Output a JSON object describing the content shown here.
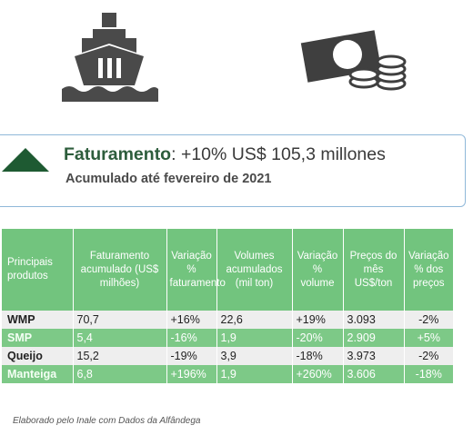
{
  "summary": {
    "label": "Faturamento",
    "value_text": ": +10% US$ 105,3 millones",
    "subtitle": "Acumulado até fevereiro de 2021",
    "trend": "up",
    "accent_color": "#1e5a32"
  },
  "icons": [
    "ship-icon",
    "money-icon"
  ],
  "table": {
    "headers": [
      "Principais produtos",
      "Faturamento acumulado (US$ milhões)",
      "Variação % faturamento",
      "Volumes acumulados (mil ton)",
      "Variação % volume",
      "Preços do mês US$/ton",
      "Variação % dos preços"
    ],
    "rows": [
      [
        "WMP",
        "70,7",
        "+16%",
        "22,6",
        "+19%",
        "3.093",
        "-2%"
      ],
      [
        "SMP",
        "5,4",
        "-16%",
        "1,9",
        "-20%",
        "2.909",
        "+5%"
      ],
      [
        "Queijo",
        "15,2",
        "-19%",
        "3,9",
        "-18%",
        "3.973",
        "-2%"
      ],
      [
        "Manteiga",
        "6,8",
        "+196%",
        "1,9",
        "+260%",
        "3.606",
        "-18%"
      ]
    ],
    "header_color": "#72c47e",
    "alt_row_color": "#7dc987"
  },
  "source": "Elaborado pelo Inale com Dados da Alfândega"
}
